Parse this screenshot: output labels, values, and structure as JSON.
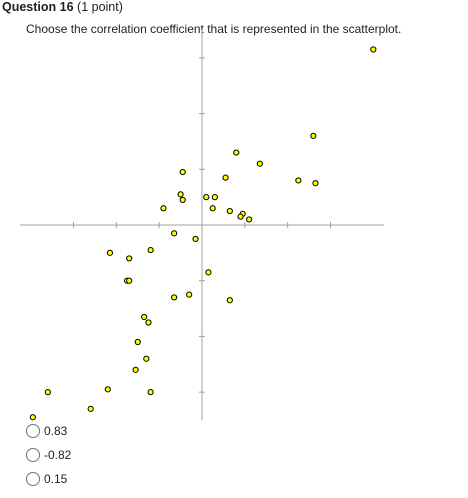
{
  "question": {
    "title": "Question 16",
    "points": "(1 point)",
    "prompt": "Choose the correlation coefficient that is represented in the scatterplot."
  },
  "options": [
    {
      "label": "0.83"
    },
    {
      "label": "-0.82"
    },
    {
      "label": "0.15"
    }
  ],
  "colors": {
    "point_fill": "#ffff00",
    "point_stroke": "#000000",
    "axis": "#a0a0a0",
    "text": "#202122"
  },
  "chart_data": {
    "type": "scatter",
    "title": "",
    "xlabel": "",
    "ylabel": "",
    "grid": false,
    "legend": "none",
    "xlim": [
      -8.5,
      8.5
    ],
    "ylim": [
      -7,
      7
    ],
    "x_ticks": [
      -6,
      -4,
      -2,
      2,
      4,
      6
    ],
    "y_ticks": [
      -6,
      -4,
      -2,
      2,
      4,
      6
    ],
    "points": [
      {
        "x": 8.0,
        "y": 6.3
      },
      {
        "x": 5.2,
        "y": 3.2
      },
      {
        "x": 1.6,
        "y": 2.6
      },
      {
        "x": 2.7,
        "y": 2.2
      },
      {
        "x": 4.5,
        "y": 1.6
      },
      {
        "x": 5.3,
        "y": 1.5
      },
      {
        "x": -0.9,
        "y": 1.9
      },
      {
        "x": 1.1,
        "y": 1.7
      },
      {
        "x": -1.0,
        "y": 1.1
      },
      {
        "x": -0.9,
        "y": 0.9
      },
      {
        "x": 0.2,
        "y": 1.0
      },
      {
        "x": 0.6,
        "y": 1.0
      },
      {
        "x": 0.5,
        "y": 0.6
      },
      {
        "x": -1.8,
        "y": 0.6
      },
      {
        "x": 1.3,
        "y": 0.5
      },
      {
        "x": 1.9,
        "y": 0.4
      },
      {
        "x": 2.2,
        "y": 0.2
      },
      {
        "x": 1.8,
        "y": 0.3
      },
      {
        "x": -1.3,
        "y": -0.3
      },
      {
        "x": -0.3,
        "y": -0.5
      },
      {
        "x": -4.3,
        "y": -1.0
      },
      {
        "x": -3.4,
        "y": -1.2
      },
      {
        "x": -2.4,
        "y": -0.9
      },
      {
        "x": 0.3,
        "y": -1.7
      },
      {
        "x": -3.5,
        "y": -2.0
      },
      {
        "x": -3.4,
        "y": -2.0
      },
      {
        "x": -1.3,
        "y": -2.6
      },
      {
        "x": -0.6,
        "y": -2.5
      },
      {
        "x": 1.3,
        "y": -2.7
      },
      {
        "x": -2.7,
        "y": -3.3
      },
      {
        "x": -2.5,
        "y": -3.5
      },
      {
        "x": -3.0,
        "y": -4.2
      },
      {
        "x": -2.6,
        "y": -4.8
      },
      {
        "x": -3.1,
        "y": -5.2
      },
      {
        "x": -4.4,
        "y": -5.9
      },
      {
        "x": -7.2,
        "y": -6.0
      },
      {
        "x": -2.4,
        "y": -6.0
      },
      {
        "x": -5.2,
        "y": -6.6
      },
      {
        "x": -7.9,
        "y": -6.9
      }
    ]
  }
}
